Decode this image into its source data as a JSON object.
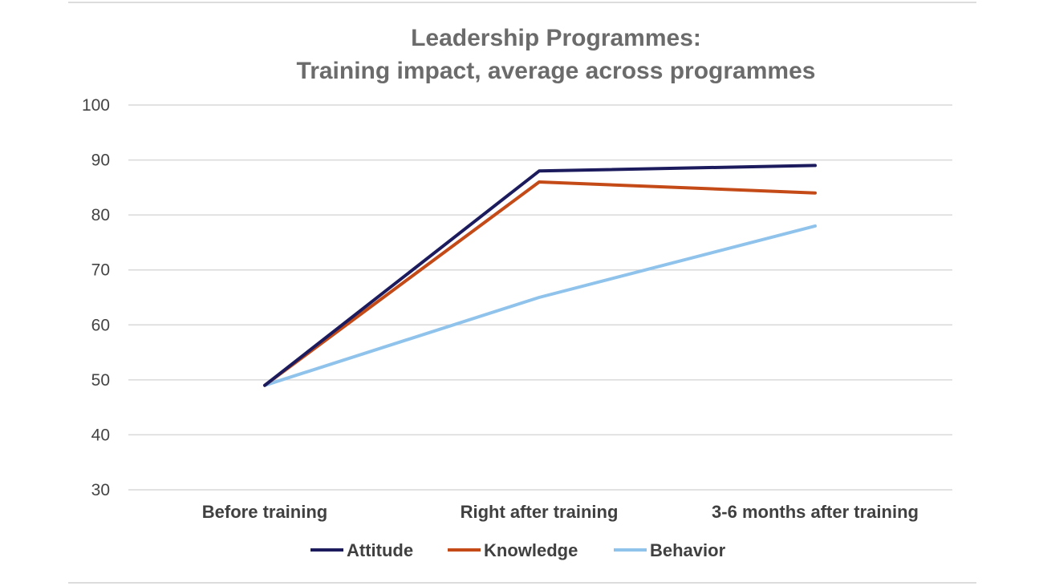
{
  "chart_data": {
    "type": "line",
    "title": [
      "Leadership Programmes:",
      "Training impact, average across programmes"
    ],
    "categories": [
      "Before training",
      "Right after training",
      "3-6 months after training"
    ],
    "ylim": [
      30,
      100
    ],
    "yticks": [
      30,
      40,
      50,
      60,
      70,
      80,
      90,
      100
    ],
    "grid": true,
    "legend_position": "bottom",
    "series": [
      {
        "name": "Attitude",
        "values": [
          49,
          88,
          89
        ],
        "color": "#1b1b5e"
      },
      {
        "name": "Knowledge",
        "values": [
          49,
          86,
          84
        ],
        "color": "#c44a17"
      },
      {
        "name": "Behavior",
        "values": [
          49,
          65,
          78
        ],
        "color": "#8fc3ec"
      }
    ]
  }
}
